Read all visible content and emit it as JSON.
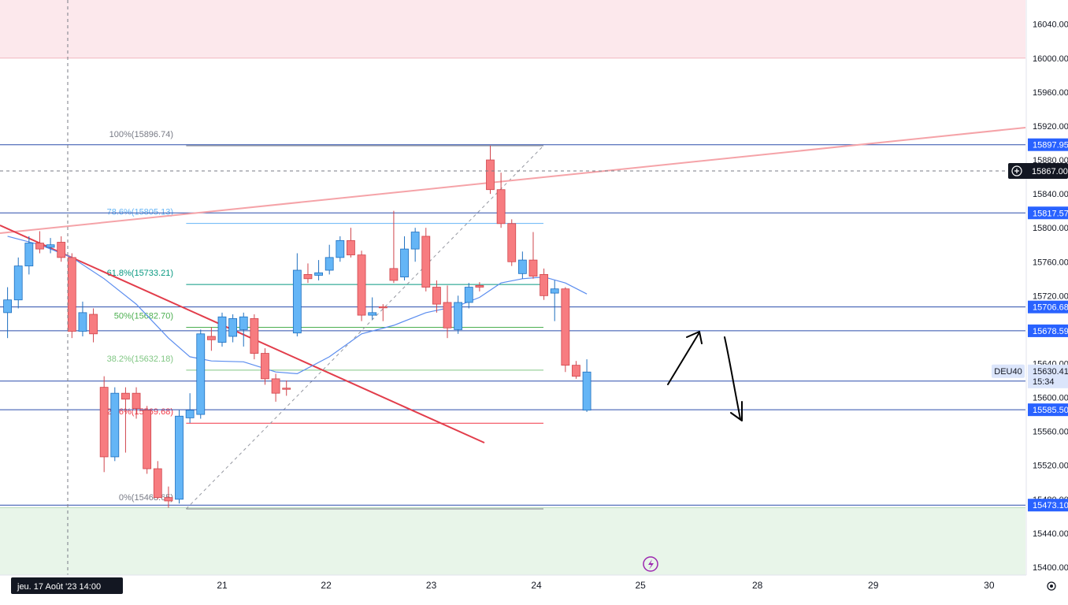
{
  "chart_data": {
    "type": "candlestick",
    "symbol": "DEU40",
    "countdown": "15:34",
    "current_price": 15630.41,
    "crosshair_price": 15867.0,
    "crosshair_time": "jeu. 17 Août '23   14:00",
    "ylim": [
      15380,
      16080
    ],
    "y_ticks": [
      "16040.00",
      "16000.00",
      "15960.00",
      "15920.00",
      "15880.00",
      "15840.00",
      "15800.00",
      "15760.00",
      "15720.00",
      "15680.00",
      "15640.00",
      "15600.00",
      "15560.00",
      "15520.00",
      "15480.00",
      "15440.00",
      "15400.00"
    ],
    "x_ticks": [
      {
        "label": "17",
        "i": -16.0
      },
      {
        "label": "21",
        "i": 0
      },
      {
        "label": "22",
        "i": 9.7
      },
      {
        "label": "23",
        "i": 19.5
      },
      {
        "label": "24",
        "i": 29.3
      },
      {
        "label": "25",
        "i": 39.0
      },
      {
        "label": "28",
        "i": 49.9
      },
      {
        "label": "29",
        "i": 60.7
      },
      {
        "label": "30",
        "i": 71.5
      }
    ],
    "candles": [
      {
        "i": -20,
        "o": 15700,
        "h": 15730,
        "l": 15670,
        "c": 15715
      },
      {
        "i": -19,
        "o": 15715,
        "h": 15765,
        "l": 15705,
        "c": 15755
      },
      {
        "i": -18,
        "o": 15755,
        "h": 15790,
        "l": 15745,
        "c": 15782
      },
      {
        "i": -17,
        "o": 15782,
        "h": 15796,
        "l": 15770,
        "c": 15775
      },
      {
        "i": -16,
        "o": 15777,
        "h": 15788,
        "l": 15770,
        "c": 15780
      },
      {
        "i": -15,
        "o": 15783,
        "h": 15790,
        "l": 15760,
        "c": 15765
      },
      {
        "i": -14,
        "o": 15765,
        "h": 15770,
        "l": 15670,
        "c": 15678
      },
      {
        "i": -13,
        "o": 15678,
        "h": 15713,
        "l": 15672,
        "c": 15700
      },
      {
        "i": -12,
        "o": 15698,
        "h": 15705,
        "l": 15665,
        "c": 15675
      },
      {
        "i": -11,
        "o": 15612,
        "h": 15625,
        "l": 15512,
        "c": 15530
      },
      {
        "i": -10,
        "o": 15530,
        "h": 15612,
        "l": 15525,
        "c": 15605
      },
      {
        "i": -9,
        "o": 15605,
        "h": 15612,
        "l": 15535,
        "c": 15598
      },
      {
        "i": -8,
        "o": 15605,
        "h": 15612,
        "l": 15575,
        "c": 15587
      },
      {
        "i": -7,
        "o": 15585,
        "h": 15590,
        "l": 15510,
        "c": 15516
      },
      {
        "i": -6,
        "o": 15516,
        "h": 15525,
        "l": 15480,
        "c": 15482
      },
      {
        "i": -5,
        "o": 15482,
        "h": 15495,
        "l": 15470,
        "c": 15478
      },
      {
        "i": -4,
        "o": 15480,
        "h": 15585,
        "l": 15475,
        "c": 15578
      },
      {
        "i": -3,
        "o": 15576,
        "h": 15605,
        "l": 15570,
        "c": 15585
      },
      {
        "i": -2,
        "o": 15580,
        "h": 15680,
        "l": 15575,
        "c": 15675
      },
      {
        "i": -1,
        "o": 15672,
        "h": 15683,
        "l": 15655,
        "c": 15668
      },
      {
        "i": 0,
        "o": 15665,
        "h": 15700,
        "l": 15660,
        "c": 15695
      },
      {
        "i": 1,
        "o": 15672,
        "h": 15698,
        "l": 15665,
        "c": 15693
      },
      {
        "i": 2,
        "o": 15680,
        "h": 15700,
        "l": 15660,
        "c": 15695
      },
      {
        "i": 3,
        "o": 15693,
        "h": 15698,
        "l": 15645,
        "c": 15652
      },
      {
        "i": 4,
        "o": 15652,
        "h": 15658,
        "l": 15615,
        "c": 15622
      },
      {
        "i": 5,
        "o": 15622,
        "h": 15628,
        "l": 15595,
        "c": 15605
      },
      {
        "i": 6,
        "o": 15611,
        "h": 15620,
        "l": 15602,
        "c": 15610
      },
      {
        "i": 7,
        "o": 15676,
        "h": 15770,
        "l": 15672,
        "c": 15750
      },
      {
        "i": 8,
        "o": 15745,
        "h": 15758,
        "l": 15735,
        "c": 15740
      },
      {
        "i": 9,
        "o": 15744,
        "h": 15762,
        "l": 15738,
        "c": 15747
      },
      {
        "i": 10,
        "o": 15750,
        "h": 15780,
        "l": 15745,
        "c": 15765
      },
      {
        "i": 11,
        "o": 15765,
        "h": 15790,
        "l": 15760,
        "c": 15785
      },
      {
        "i": 12,
        "o": 15785,
        "h": 15800,
        "l": 15765,
        "c": 15768
      },
      {
        "i": 13,
        "o": 15768,
        "h": 15773,
        "l": 15690,
        "c": 15697
      },
      {
        "i": 14,
        "o": 15697,
        "h": 15718,
        "l": 15692,
        "c": 15700
      },
      {
        "i": 15,
        "o": 15707,
        "h": 15710,
        "l": 15690,
        "c": 15706
      },
      {
        "i": 16,
        "o": 15752,
        "h": 15820,
        "l": 15735,
        "c": 15738
      },
      {
        "i": 17,
        "o": 15742,
        "h": 15790,
        "l": 15738,
        "c": 15775
      },
      {
        "i": 18,
        "o": 15775,
        "h": 15800,
        "l": 15760,
        "c": 15795
      },
      {
        "i": 19,
        "o": 15790,
        "h": 15800,
        "l": 15725,
        "c": 15730
      },
      {
        "i": 20,
        "o": 15730,
        "h": 15738,
        "l": 15700,
        "c": 15710
      },
      {
        "i": 21,
        "o": 15712,
        "h": 15732,
        "l": 15670,
        "c": 15682
      },
      {
        "i": 22,
        "o": 15680,
        "h": 15720,
        "l": 15675,
        "c": 15712
      },
      {
        "i": 23,
        "o": 15712,
        "h": 15735,
        "l": 15705,
        "c": 15730
      },
      {
        "i": 24,
        "o": 15732,
        "h": 15736,
        "l": 15725,
        "c": 15730
      },
      {
        "i": 25,
        "o": 15880,
        "h": 15897,
        "l": 15840,
        "c": 15845
      },
      {
        "i": 26,
        "o": 15845,
        "h": 15865,
        "l": 15800,
        "c": 15805
      },
      {
        "i": 27,
        "o": 15805,
        "h": 15810,
        "l": 15755,
        "c": 15760
      },
      {
        "i": 28,
        "o": 15746,
        "h": 15772,
        "l": 15740,
        "c": 15762
      },
      {
        "i": 29,
        "o": 15762,
        "h": 15795,
        "l": 15740,
        "c": 15743
      },
      {
        "i": 30,
        "o": 15745,
        "h": 15752,
        "l": 15715,
        "c": 15720
      },
      {
        "i": 31,
        "o": 15723,
        "h": 15738,
        "l": 15690,
        "c": 15728
      },
      {
        "i": 32,
        "o": 15728,
        "h": 15730,
        "l": 15630,
        "c": 15638
      },
      {
        "i": 33,
        "o": 15638,
        "h": 15643,
        "l": 15622,
        "c": 15625
      },
      {
        "i": 34,
        "o": 15585,
        "h": 15645,
        "l": 15583,
        "c": 15630
      }
    ],
    "moving_average": [
      {
        "i": -20,
        "v": 15790
      },
      {
        "i": -17,
        "v": 15780
      },
      {
        "i": -14,
        "v": 15765
      },
      {
        "i": -11,
        "v": 15740
      },
      {
        "i": -8,
        "v": 15710
      },
      {
        "i": -5,
        "v": 15670
      },
      {
        "i": -3,
        "v": 15648
      },
      {
        "i": -1,
        "v": 15643
      },
      {
        "i": 2,
        "v": 15642
      },
      {
        "i": 5,
        "v": 15630
      },
      {
        "i": 7,
        "v": 15628
      },
      {
        "i": 10,
        "v": 15648
      },
      {
        "i": 13,
        "v": 15675
      },
      {
        "i": 16,
        "v": 15685
      },
      {
        "i": 19,
        "v": 15700
      },
      {
        "i": 22,
        "v": 15708
      },
      {
        "i": 24,
        "v": 15718
      },
      {
        "i": 26,
        "v": 15735
      },
      {
        "i": 28,
        "v": 15740
      },
      {
        "i": 30,
        "v": 15742
      },
      {
        "i": 32,
        "v": 15735
      },
      {
        "i": 34,
        "v": 15722
      }
    ],
    "fib_levels": [
      {
        "label": "100%(15896.74)",
        "v": 15896.74,
        "color": "#787b86"
      },
      {
        "label": "78.6%(15805.13)",
        "v": 15805.13,
        "color": "#64b5f6"
      },
      {
        "label": "61.8%(15733.21)",
        "v": 15733.21,
        "color": "#089981"
      },
      {
        "label": "50%(15682.70)",
        "v": 15682.7,
        "color": "#4caf50"
      },
      {
        "label": "38.2%(15632.18)",
        "v": 15632.18,
        "color": "#81c784"
      },
      {
        "label": "23.6%(15569.68)",
        "v": 15569.68,
        "color": "#f23645"
      },
      {
        "label": "0%(15468.65)",
        "v": 15468.65,
        "color": "#787b86"
      }
    ],
    "horizontal_lines": [
      {
        "label": "15897.95",
        "v": 15897.95
      },
      {
        "label": "15817.57",
        "v": 15817.57
      },
      {
        "label": "15706.68",
        "v": 15706.68
      },
      {
        "label": "15678.59",
        "v": 15678.59
      },
      {
        "label": "15619.28",
        "v": 15619.28
      },
      {
        "label": "15585.50",
        "v": 15585.5
      },
      {
        "label": "15473.10",
        "v": 15473.1
      }
    ],
    "zones": [
      {
        "from": 16000,
        "to": 16070,
        "color": "#fce8ec"
      },
      {
        "from": 15380,
        "to": 15470,
        "color": "#e8f5e9"
      }
    ],
    "colors": {
      "up": "#64b5f6",
      "down": "#f77c80",
      "accent": "#2962ff",
      "trend_red": "#e23d4b",
      "trend_pink": "#f5a3a8",
      "ma": "#5b8def"
    }
  }
}
